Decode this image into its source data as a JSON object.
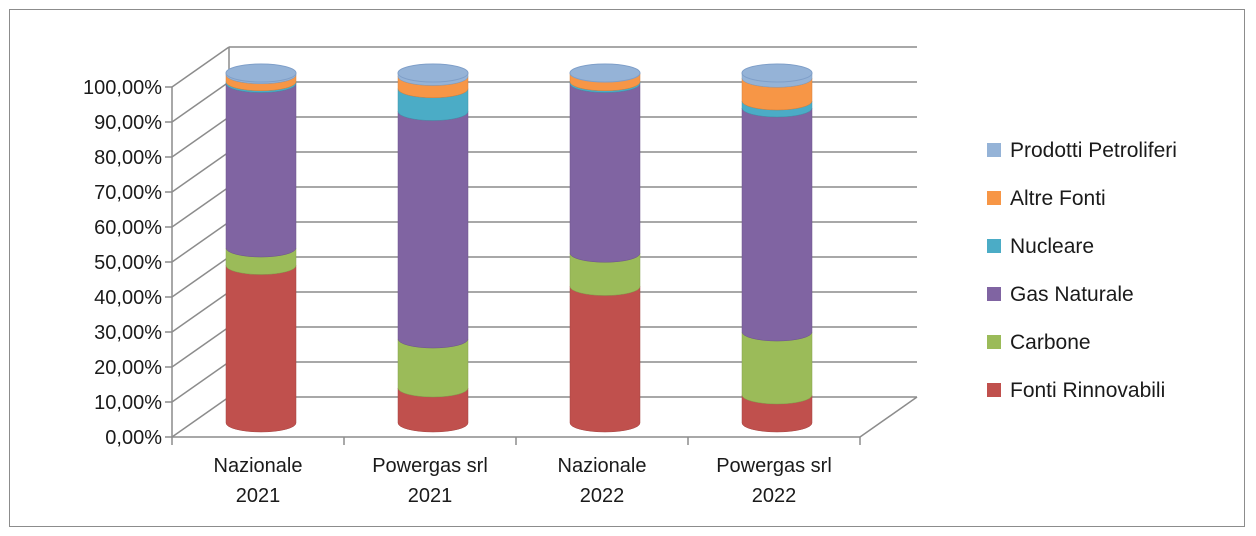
{
  "chart_data": {
    "type": "bar",
    "stacked": true,
    "three_d": true,
    "bar_shape": "cylinder",
    "categories": [
      [
        "Nazionale",
        "2021"
      ],
      [
        "Powergas srl",
        "2021"
      ],
      [
        "Nazionale",
        "2022"
      ],
      [
        "Powergas srl",
        "2022"
      ]
    ],
    "series": [
      {
        "name": "Fonti  Rinnovabili",
        "color": "#c0504d",
        "values": [
          45.0,
          10.0,
          39.0,
          8.0
        ]
      },
      {
        "name": "Carbone",
        "color": "#9bbb59",
        "values": [
          5.0,
          14.0,
          9.5,
          18.0
        ]
      },
      {
        "name": "Gas Naturale",
        "color": "#8064a2",
        "values": [
          47.0,
          65.0,
          48.5,
          64.0
        ]
      },
      {
        "name": "Nucleare",
        "color": "#4bacc6",
        "values": [
          0.5,
          6.5,
          0.5,
          2.0
        ]
      },
      {
        "name": "Altre Fonti",
        "color": "#f79646",
        "values": [
          2.0,
          3.5,
          2.5,
          6.5
        ]
      },
      {
        "name": "Prodotti Petroliferi",
        "color": "#95b3d7",
        "values": [
          0.5,
          1.0,
          0.0,
          1.5
        ]
      }
    ],
    "yticks": [
      "0,00%",
      "10,00%",
      "20,00%",
      "30,00%",
      "40,00%",
      "50,00%",
      "60,00%",
      "70,00%",
      "80,00%",
      "90,00%",
      "100,00%"
    ],
    "ylim": [
      0,
      100
    ],
    "grid": true,
    "legend_position": "right"
  }
}
